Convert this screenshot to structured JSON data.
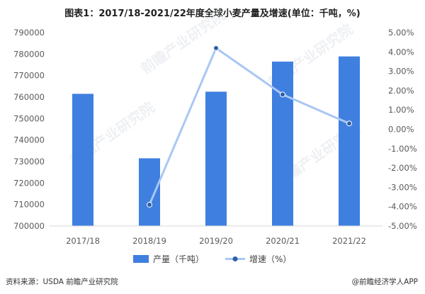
{
  "title": "图表1：2017/18-2021/22年度全球小麦产量及增速(单位：千吨，%)",
  "source": "资料来源：USDA 前瞻产业研究院",
  "credit": "@前瞻经济学人APP",
  "watermark": "前瞻产业研究院",
  "colors": {
    "bar": "#3f7fe0",
    "line": "#a9c7f5",
    "marker": "#2e5fa8",
    "gridline": "#e6e6e6"
  },
  "chart_data": {
    "type": "bar",
    "categories": [
      "2017/18",
      "2018/19",
      "2019/20",
      "2020/21",
      "2021/22"
    ],
    "series": [
      {
        "name": "产量（千吨）",
        "type": "bar",
        "axis": "left",
        "values": [
          761500,
          731500,
          762500,
          776500,
          778900
        ]
      },
      {
        "name": "增速（%）",
        "type": "line",
        "axis": "right",
        "values": [
          null,
          -3.9,
          4.2,
          1.8,
          0.3
        ]
      }
    ],
    "y_left": {
      "min": 700000,
      "max": 790000,
      "step": 10000,
      "ticks": [
        "700000",
        "710000",
        "720000",
        "730000",
        "740000",
        "750000",
        "760000",
        "770000",
        "780000",
        "790000"
      ]
    },
    "y_right": {
      "min": -5,
      "max": 5,
      "step": 1,
      "ticks": [
        "-5.00%",
        "-4.00%",
        "-3.00%",
        "-2.00%",
        "-1.00%",
        "0.00%",
        "1.00%",
        "2.00%",
        "3.00%",
        "4.00%",
        "5.00%"
      ]
    },
    "legend_position": "bottom",
    "grid": false
  }
}
